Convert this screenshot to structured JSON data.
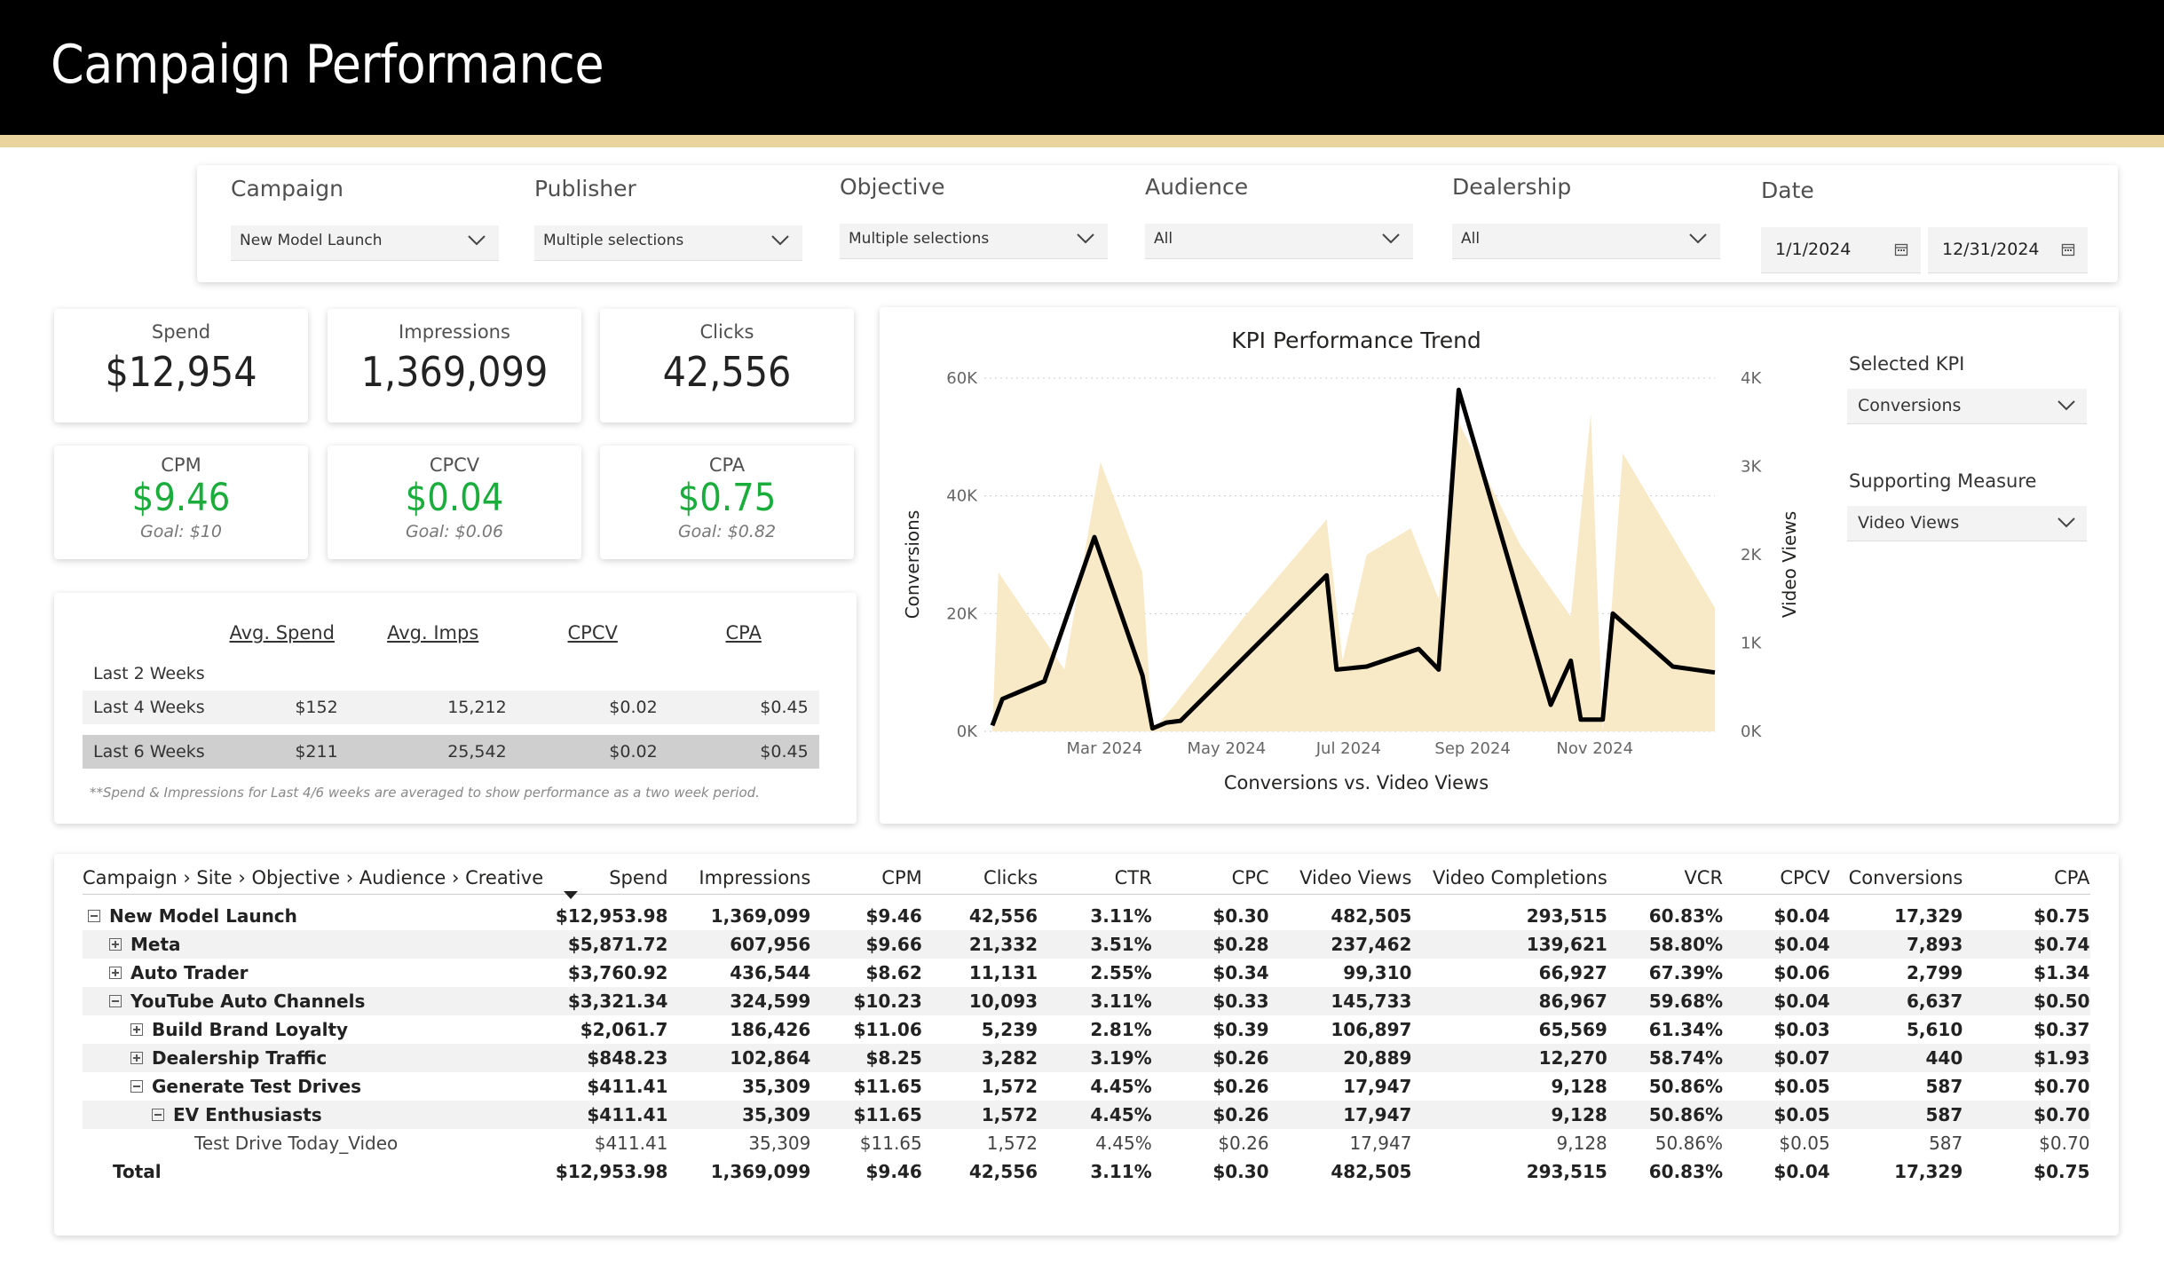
{
  "header": {
    "title": "Campaign Performance"
  },
  "filters": {
    "campaign": {
      "label": "Campaign",
      "value": "New Model Launch"
    },
    "publisher": {
      "label": "Publisher",
      "value": "Multiple selections"
    },
    "objective": {
      "label": "Objective",
      "value": "Multiple selections"
    },
    "audience": {
      "label": "Audience",
      "value": "All"
    },
    "dealership": {
      "label": "Dealership",
      "value": "All"
    },
    "date": {
      "label": "Date",
      "start": "1/1/2024",
      "end": "12/31/2024"
    }
  },
  "kpis": {
    "spend": {
      "label": "Spend",
      "value": "$12,954"
    },
    "impressions": {
      "label": "Impressions",
      "value": "1,369,099"
    },
    "clicks": {
      "label": "Clicks",
      "value": "42,556"
    },
    "cpm": {
      "label": "CPM",
      "value": "$9.46",
      "goal": "Goal: $10"
    },
    "cpcv": {
      "label": "CPCV",
      "value": "$0.04",
      "goal": "Goal: $0.06"
    },
    "cpa": {
      "label": "CPA",
      "value": "$0.75",
      "goal": "Goal: $0.82"
    }
  },
  "weeks_table": {
    "headers": [
      "Avg. Spend",
      "Avg. Imps",
      "CPCV",
      "CPA"
    ],
    "rows": [
      {
        "label": "Last 2 Weeks",
        "spend": "",
        "imps": "",
        "cpcv": "",
        "cpa": ""
      },
      {
        "label": "Last 4 Weeks",
        "spend": "$152",
        "imps": "15,212",
        "cpcv": "$0.02",
        "cpa": "$0.45"
      },
      {
        "label": "Last 6 Weeks",
        "spend": "$211",
        "imps": "25,542",
        "cpcv": "$0.02",
        "cpa": "$0.45"
      }
    ],
    "note": "**Spend & Impressions for Last 4/6 weeks are averaged to show performance as a two week period."
  },
  "chart_data": {
    "type": "line",
    "title": "KPI Performance Trend",
    "xlabel": "Conversions vs. Video Views",
    "ylabel": "Conversions",
    "y2label": "Video Views",
    "xlim": [
      "2024-01-01",
      "2024-12-31"
    ],
    "ylim": [
      0,
      60000
    ],
    "y2lim": [
      0,
      4000
    ],
    "yticks": [
      "0K",
      "20K",
      "40K",
      "60K"
    ],
    "y2ticks": [
      "0K",
      "1K",
      "2K",
      "3K",
      "4K"
    ],
    "xticks": [
      {
        "label": "Mar 2024",
        "date": "2024-03-01"
      },
      {
        "label": "May 2024",
        "date": "2024-05-01"
      },
      {
        "label": "Jul 2024",
        "date": "2024-07-01"
      },
      {
        "label": "Sep 2024",
        "date": "2024-09-01"
      },
      {
        "label": "Nov 2024",
        "date": "2024-11-01"
      }
    ],
    "grid": true,
    "colors": {
      "line": "#000000",
      "area": "#f8e9c7"
    },
    "series": [
      {
        "name": "Conversions",
        "type": "line",
        "axis": "left",
        "points": [
          [
            "2024-01-05",
            1000
          ],
          [
            "2024-01-10",
            5500
          ],
          [
            "2024-01-31",
            8500
          ],
          [
            "2024-02-25",
            33000
          ],
          [
            "2024-03-20",
            9500
          ],
          [
            "2024-03-25",
            500
          ],
          [
            "2024-04-01",
            1500
          ],
          [
            "2024-04-08",
            1800
          ],
          [
            "2024-06-20",
            26500
          ],
          [
            "2024-06-25",
            10500
          ],
          [
            "2024-07-10",
            11000
          ],
          [
            "2024-08-05",
            14000
          ],
          [
            "2024-08-15",
            10500
          ],
          [
            "2024-08-25",
            58000
          ],
          [
            "2024-10-10",
            4500
          ],
          [
            "2024-10-20",
            12000
          ],
          [
            "2024-10-25",
            2000
          ],
          [
            "2024-11-05",
            2000
          ],
          [
            "2024-11-10",
            20000
          ],
          [
            "2024-12-10",
            11000
          ],
          [
            "2024-12-31",
            10000
          ]
        ]
      },
      {
        "name": "Video Views",
        "type": "area",
        "axis": "right",
        "points": [
          [
            "2024-01-05",
            0
          ],
          [
            "2024-01-08",
            1800
          ],
          [
            "2024-02-10",
            700
          ],
          [
            "2024-02-28",
            3050
          ],
          [
            "2024-03-20",
            1800
          ],
          [
            "2024-03-25",
            0
          ],
          [
            "2024-04-05",
            300
          ],
          [
            "2024-05-10",
            1300
          ],
          [
            "2024-06-20",
            2400
          ],
          [
            "2024-06-28",
            800
          ],
          [
            "2024-07-10",
            2000
          ],
          [
            "2024-08-01",
            2300
          ],
          [
            "2024-08-15",
            1500
          ],
          [
            "2024-08-25",
            3500
          ],
          [
            "2024-09-25",
            2100
          ],
          [
            "2024-10-20",
            1300
          ],
          [
            "2024-10-30",
            3600
          ],
          [
            "2024-11-05",
            0
          ],
          [
            "2024-11-15",
            3150
          ],
          [
            "2024-12-31",
            1400
          ],
          [
            "2024-12-31",
            0
          ]
        ]
      }
    ]
  },
  "side_controls": {
    "selected_kpi": {
      "label": "Selected KPI",
      "value": "Conversions"
    },
    "supporting_measure": {
      "label": "Supporting Measure",
      "value": "Video Views"
    }
  },
  "matrix": {
    "headers": [
      "Campaign › Site › Objective › Audience › Creative",
      "Spend",
      "Impressions",
      "CPM",
      "Clicks",
      "CTR",
      "CPC",
      "Video Views",
      "Video Completions",
      "VCR",
      "CPCV",
      "Conversions",
      "CPA"
    ],
    "rows": [
      {
        "indent": 0,
        "toggle": "minus",
        "bold": true,
        "band": false,
        "cells": [
          "New Model Launch",
          "$12,953.98",
          "1,369,099",
          "$9.46",
          "42,556",
          "3.11%",
          "$0.30",
          "482,505",
          "293,515",
          "60.83%",
          "$0.04",
          "17,329",
          "$0.75"
        ]
      },
      {
        "indent": 1,
        "toggle": "plus",
        "bold": true,
        "band": true,
        "cells": [
          "Meta",
          "$5,871.72",
          "607,956",
          "$9.66",
          "21,332",
          "3.51%",
          "$0.28",
          "237,462",
          "139,621",
          "58.80%",
          "$0.04",
          "7,893",
          "$0.74"
        ]
      },
      {
        "indent": 1,
        "toggle": "plus",
        "bold": true,
        "band": false,
        "cells": [
          "Auto Trader",
          "$3,760.92",
          "436,544",
          "$8.62",
          "11,131",
          "2.55%",
          "$0.34",
          "99,310",
          "66,927",
          "67.39%",
          "$0.06",
          "2,799",
          "$1.34"
        ]
      },
      {
        "indent": 1,
        "toggle": "minus",
        "bold": true,
        "band": true,
        "cells": [
          "YouTube Auto Channels",
          "$3,321.34",
          "324,599",
          "$10.23",
          "10,093",
          "3.11%",
          "$0.33",
          "145,733",
          "86,967",
          "59.68%",
          "$0.04",
          "6,637",
          "$0.50"
        ]
      },
      {
        "indent": 2,
        "toggle": "plus",
        "bold": true,
        "band": false,
        "cells": [
          "Build Brand Loyalty",
          "$2,061.7",
          "186,426",
          "$11.06",
          "5,239",
          "2.81%",
          "$0.39",
          "106,897",
          "65,569",
          "61.34%",
          "$0.03",
          "5,610",
          "$0.37"
        ]
      },
      {
        "indent": 2,
        "toggle": "plus",
        "bold": true,
        "band": true,
        "cells": [
          "Dealership Traffic",
          "$848.23",
          "102,864",
          "$8.25",
          "3,282",
          "3.19%",
          "$0.26",
          "20,889",
          "12,270",
          "58.74%",
          "$0.07",
          "440",
          "$1.93"
        ]
      },
      {
        "indent": 2,
        "toggle": "minus",
        "bold": true,
        "band": false,
        "cells": [
          "Generate Test Drives",
          "$411.41",
          "35,309",
          "$11.65",
          "1,572",
          "4.45%",
          "$0.26",
          "17,947",
          "9,128",
          "50.86%",
          "$0.05",
          "587",
          "$0.70"
        ]
      },
      {
        "indent": 3,
        "toggle": "minus",
        "bold": true,
        "band": true,
        "cells": [
          "EV Enthusiasts",
          "$411.41",
          "35,309",
          "$11.65",
          "1,572",
          "4.45%",
          "$0.26",
          "17,947",
          "9,128",
          "50.86%",
          "$0.05",
          "587",
          "$0.70"
        ]
      },
      {
        "indent": 4,
        "toggle": "",
        "bold": false,
        "band": false,
        "cells": [
          "Test Drive Today_Video",
          "$411.41",
          "35,309",
          "$11.65",
          "1,572",
          "4.45%",
          "$0.26",
          "17,947",
          "9,128",
          "50.86%",
          "$0.05",
          "587",
          "$0.70"
        ]
      },
      {
        "indent": 0,
        "toggle": "",
        "bold": true,
        "band": false,
        "total": true,
        "cells": [
          "Total",
          "$12,953.98",
          "1,369,099",
          "$9.46",
          "42,556",
          "3.11%",
          "$0.30",
          "482,505",
          "293,515",
          "60.83%",
          "$0.04",
          "17,329",
          "$0.75"
        ]
      }
    ]
  }
}
